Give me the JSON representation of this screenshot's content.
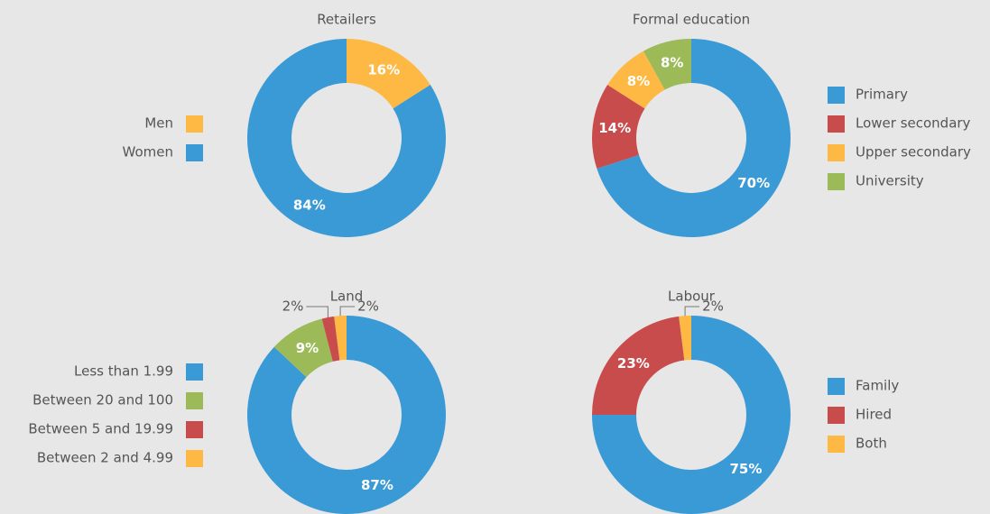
{
  "chart_data": [
    {
      "type": "pie",
      "title": "Retailers",
      "categories": [
        "Men",
        "Women"
      ],
      "values": [
        16,
        84
      ],
      "value_labels": [
        "16%",
        "84%"
      ],
      "colors": [
        "#fdb943",
        "#3a9ad6"
      ],
      "legend": "left"
    },
    {
      "type": "pie",
      "title": "Formal education",
      "categories": [
        "Primary",
        "Lower secondary",
        "Upper secondary",
        "University"
      ],
      "values": [
        70,
        14,
        8,
        8
      ],
      "value_labels": [
        "70%",
        "14%",
        "8%",
        "8%"
      ],
      "colors": [
        "#3a9ad6",
        "#c94c4c",
        "#fdb943",
        "#9cbb58"
      ],
      "legend": "right"
    },
    {
      "type": "pie",
      "title": "Land",
      "categories": [
        "Less than 1.99",
        "Between 20 and 100",
        "Between 5 and 19.99",
        "Between 2 and 4.99"
      ],
      "values": [
        87,
        9,
        2,
        2
      ],
      "value_labels": [
        "87%",
        "9%",
        "2%",
        "2%"
      ],
      "colors": [
        "#3a9ad6",
        "#9cbb58",
        "#c94c4c",
        "#fdb943"
      ],
      "legend": "left"
    },
    {
      "type": "pie",
      "title": "Labour",
      "categories": [
        "Family",
        "Hired",
        "Both"
      ],
      "values": [
        75,
        23,
        2
      ],
      "value_labels": [
        "75%",
        "23%",
        "2%"
      ],
      "colors": [
        "#3a9ad6",
        "#c94c4c",
        "#fdb943"
      ],
      "legend": "right"
    }
  ]
}
